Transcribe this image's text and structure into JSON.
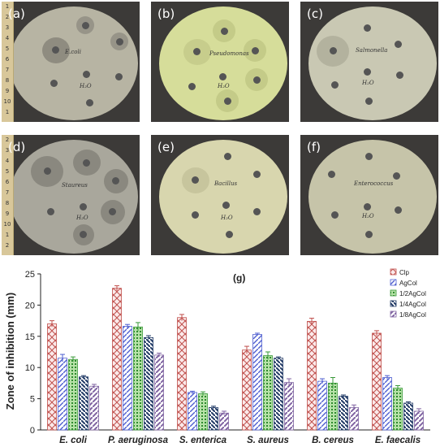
{
  "photos": [
    {
      "tag": "(a)",
      "plate_text": "E.coli",
      "h2o": "H₂O"
    },
    {
      "tag": "(b)",
      "plate_text": "Pseudomonas",
      "h2o": "H₂O"
    },
    {
      "tag": "(c)",
      "plate_text": "Salmonella",
      "h2o": "H₂O"
    },
    {
      "tag": "(d)",
      "plate_text": "Staureus",
      "h2o": "H₂O"
    },
    {
      "tag": "(e)",
      "plate_text": "Bacillus",
      "h2o": "H₂O"
    },
    {
      "tag": "(f)",
      "plate_text": "Enterococcus",
      "h2o": "H₂O"
    }
  ],
  "ruler_numbers": [
    "1",
    "2",
    "3",
    "4",
    "5",
    "6",
    "7",
    "8",
    "9",
    "10",
    "1",
    "2"
  ],
  "colors": {
    "Clp": "#c0504d",
    "AgCol": "#4f5fd0",
    "1/2AgCol": "#3a9a3a",
    "1/4AgCol": "#1f3864",
    "1/8AgCol": "#8064a2"
  },
  "chart_data": {
    "type": "bar",
    "panel_label": "(g)",
    "ylabel": "Zone of inhibition (mm)",
    "ylim": [
      0,
      25
    ],
    "yticks": [
      0,
      5,
      10,
      15,
      20,
      25
    ],
    "grid": false,
    "legend_position": "top-right",
    "categories": [
      "E. coli",
      "P. aeruginosa",
      "S. enterica",
      "S. aureus",
      "B. cereus",
      "E. faecalis"
    ],
    "series": [
      {
        "name": "Clp",
        "values": [
          17.0,
          22.7,
          18.0,
          12.8,
          17.4,
          15.5
        ],
        "errors": [
          0.5,
          0.4,
          0.5,
          0.6,
          0.5,
          0.4
        ]
      },
      {
        "name": "AgCol",
        "values": [
          11.5,
          16.6,
          6.0,
          15.3,
          7.8,
          8.4
        ],
        "errors": [
          0.6,
          0.3,
          0.2,
          0.2,
          0.4,
          0.3
        ]
      },
      {
        "name": "1/2AgCol",
        "values": [
          11.3,
          16.5,
          5.8,
          11.9,
          7.5,
          6.7
        ],
        "errors": [
          0.4,
          0.7,
          0.3,
          0.6,
          0.9,
          0.4
        ]
      },
      {
        "name": "1/4AgCol",
        "values": [
          8.5,
          14.8,
          3.6,
          11.5,
          5.4,
          4.3
        ],
        "errors": [
          0.2,
          0.3,
          0.2,
          0.2,
          0.2,
          0.2
        ]
      },
      {
        "name": "1/8AgCol",
        "values": [
          7.0,
          12.0,
          2.7,
          7.6,
          3.6,
          3.0
        ],
        "errors": [
          0.3,
          0.3,
          0.3,
          0.6,
          0.4,
          0.4
        ]
      }
    ]
  }
}
